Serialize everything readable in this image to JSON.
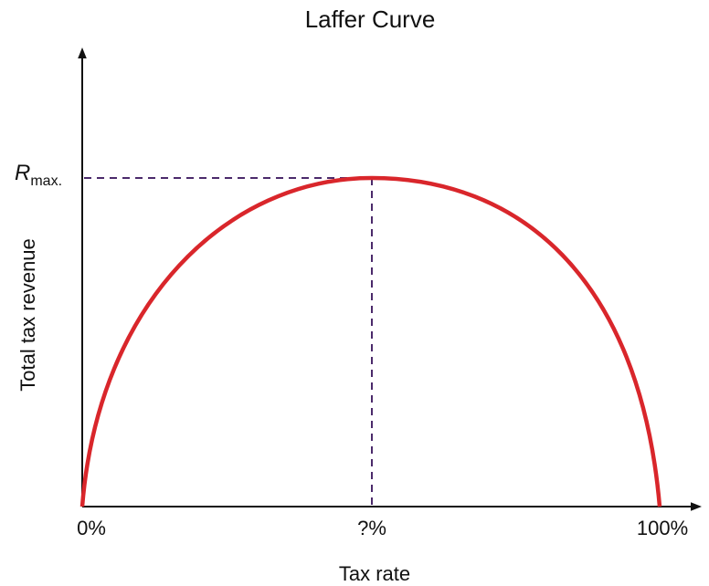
{
  "title": "Laffer Curve",
  "x_axis": {
    "label": "Tax rate",
    "ticks": [
      "0%",
      "?%",
      "100%"
    ]
  },
  "y_axis": {
    "label": "Total tax revenue",
    "tick": {
      "symbol": "R",
      "subscript": "max."
    }
  }
}
